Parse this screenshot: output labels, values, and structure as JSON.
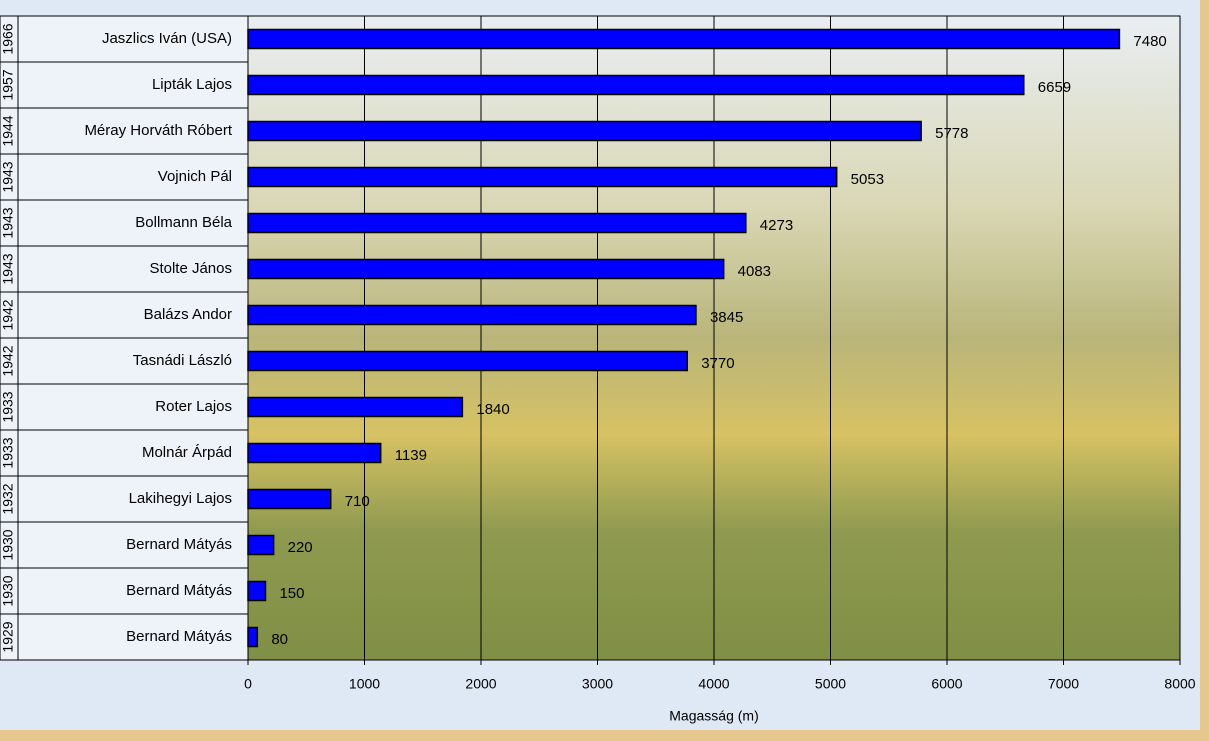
{
  "chart_data": {
    "type": "bar",
    "orientation": "horizontal",
    "categories": [
      "Jaszlics Iván (USA)",
      "Lipták Lajos",
      "Méray Horváth Róbert",
      "Vojnich Pál",
      "Bollmann Béla",
      "Stolte János",
      "Balázs Andor",
      "Tasnádi László",
      "Roter Lajos",
      "Molnár Árpád",
      "Lakihegyi Lajos",
      "Bernard Mátyás",
      "Bernard Mátyás",
      "Bernard Mátyás"
    ],
    "years": [
      "1966",
      "1957",
      "1944",
      "1943",
      "1943",
      "1943",
      "1942",
      "1942",
      "1933",
      "1933",
      "1932",
      "1930",
      "1930",
      "1929"
    ],
    "values": [
      7480,
      6659,
      5778,
      5053,
      4273,
      4083,
      3845,
      3770,
      1840,
      1139,
      710,
      220,
      150,
      80
    ],
    "color": "#0000ff",
    "x_label": "Magasság (m)",
    "xlim": [
      0,
      8000
    ],
    "xticks": [
      0,
      1000,
      2000,
      3000,
      4000,
      5000,
      6000,
      7000,
      8000
    ],
    "grid": true
  }
}
